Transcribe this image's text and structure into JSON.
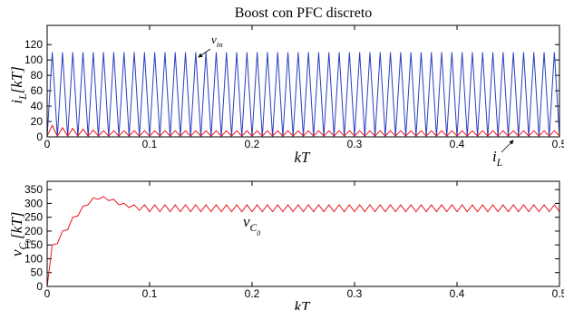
{
  "chart_data": [
    {
      "type": "line",
      "title": "Boost con PFC discreto",
      "ylabel": [
        [
          "i",
          0
        ],
        [
          "L",
          1
        ],
        [
          "[kT]",
          0
        ]
      ],
      "xlabel": [
        [
          "kT",
          0
        ]
      ],
      "annotations": [
        {
          "text": [
            [
              "v",
              0
            ],
            [
              "in",
              1
            ]
          ]
        },
        {
          "text": [
            [
              "i",
              0
            ],
            [
              "L",
              1
            ]
          ]
        }
      ],
      "xlim": [
        0,
        0.5
      ],
      "xticks": [
        0,
        0.1,
        0.2,
        0.3,
        0.4,
        0.5
      ],
      "ylim": [
        0,
        145
      ],
      "yticks": [
        0,
        20,
        40,
        60,
        80,
        100,
        120
      ],
      "x": [
        0,
        0.005,
        0.01,
        0.015,
        0.02,
        0.025,
        0.03,
        0.035,
        0.04,
        0.045,
        0.05,
        0.055,
        0.06,
        0.065,
        0.07,
        0.075,
        0.08,
        0.085,
        0.09,
        0.095,
        0.1,
        0.105,
        0.11,
        0.115,
        0.12,
        0.125,
        0.13,
        0.135,
        0.14,
        0.145,
        0.15,
        0.155,
        0.16,
        0.165,
        0.17,
        0.175,
        0.18,
        0.185,
        0.19,
        0.195,
        0.2,
        0.205,
        0.21,
        0.215,
        0.22,
        0.225,
        0.23,
        0.235,
        0.24,
        0.245,
        0.25,
        0.255,
        0.26,
        0.265,
        0.27,
        0.275,
        0.28,
        0.285,
        0.29,
        0.295,
        0.3,
        0.305,
        0.31,
        0.315,
        0.32,
        0.325,
        0.33,
        0.335,
        0.34,
        0.345,
        0.35,
        0.355,
        0.36,
        0.365,
        0.37,
        0.375,
        0.38,
        0.385,
        0.39,
        0.395,
        0.4,
        0.405,
        0.41,
        0.415,
        0.42,
        0.425,
        0.43,
        0.435,
        0.44,
        0.445,
        0.45,
        0.455,
        0.46,
        0.465,
        0.47,
        0.475,
        0.48,
        0.485,
        0.49,
        0.495,
        0.5
      ],
      "series": [
        {
          "color": "#2b3fc0",
          "values": [
            0,
            110,
            0,
            110,
            0,
            110,
            0,
            110,
            0,
            110,
            0,
            110,
            0,
            110,
            0,
            110,
            0,
            110,
            0,
            110,
            0,
            110,
            0,
            110,
            0,
            110,
            0,
            110,
            0,
            110,
            0,
            110,
            0,
            110,
            0,
            110,
            0,
            110,
            0,
            110,
            0,
            110,
            0,
            110,
            0,
            110,
            0,
            110,
            0,
            110,
            0,
            110,
            0,
            110,
            0,
            110,
            0,
            110,
            0,
            110,
            0,
            110,
            0,
            110,
            0,
            110,
            0,
            110,
            0,
            110,
            0,
            110,
            0,
            110,
            0,
            110,
            0,
            110,
            0,
            110,
            0,
            110,
            0,
            110,
            0,
            110,
            0,
            110,
            0,
            110,
            0,
            110,
            0,
            110,
            0,
            110,
            0,
            110,
            0,
            110,
            0
          ]
        },
        {
          "color": "#e8141c",
          "values": [
            1,
            15,
            1,
            12,
            1,
            11,
            1,
            10,
            1,
            9,
            1,
            8,
            1,
            8,
            1,
            8,
            1,
            8,
            1,
            8,
            1,
            8,
            1,
            8,
            1,
            8,
            1,
            8,
            1,
            8,
            1,
            8,
            1,
            8,
            1,
            8,
            1,
            8,
            1,
            8,
            1,
            8,
            1,
            8,
            1,
            8,
            1,
            8,
            1,
            8,
            1,
            8,
            1,
            8,
            1,
            8,
            1,
            8,
            1,
            8,
            1,
            8,
            1,
            8,
            1,
            8,
            1,
            8,
            1,
            8,
            1,
            8,
            1,
            8,
            1,
            8,
            1,
            8,
            1,
            8,
            1,
            8,
            1,
            8,
            1,
            8,
            1,
            8,
            1,
            8,
            1,
            8,
            1,
            8,
            1,
            8,
            1,
            8,
            1,
            8,
            1
          ]
        }
      ]
    },
    {
      "type": "line",
      "ylabel": [
        [
          "v",
          0
        ],
        [
          "C",
          1
        ],
        [
          "0",
          2
        ],
        [
          "[kT]",
          0
        ]
      ],
      "xlabel": [
        [
          "kT",
          0
        ]
      ],
      "annotations": [
        {
          "text": [
            [
              "v",
              0
            ],
            [
              "C",
              1
            ],
            [
              "0",
              2
            ]
          ]
        }
      ],
      "xlim": [
        0,
        0.5
      ],
      "xticks": [
        0,
        0.1,
        0.2,
        0.3,
        0.4,
        0.5
      ],
      "ylim": [
        0,
        380
      ],
      "yticks": [
        0,
        50,
        100,
        150,
        200,
        250,
        300,
        350
      ],
      "x": [
        0,
        0.005,
        0.01,
        0.015,
        0.02,
        0.025,
        0.03,
        0.035,
        0.04,
        0.045,
        0.05,
        0.055,
        0.06,
        0.065,
        0.07,
        0.075,
        0.08,
        0.085,
        0.09,
        0.095,
        0.1,
        0.105,
        0.11,
        0.115,
        0.12,
        0.125,
        0.13,
        0.135,
        0.14,
        0.145,
        0.15,
        0.155,
        0.16,
        0.165,
        0.17,
        0.175,
        0.18,
        0.185,
        0.19,
        0.195,
        0.2,
        0.205,
        0.21,
        0.215,
        0.22,
        0.225,
        0.23,
        0.235,
        0.24,
        0.245,
        0.25,
        0.255,
        0.26,
        0.265,
        0.27,
        0.275,
        0.28,
        0.285,
        0.29,
        0.295,
        0.3,
        0.305,
        0.31,
        0.315,
        0.32,
        0.325,
        0.33,
        0.335,
        0.34,
        0.345,
        0.35,
        0.355,
        0.36,
        0.365,
        0.37,
        0.375,
        0.38,
        0.385,
        0.39,
        0.395,
        0.4,
        0.405,
        0.41,
        0.415,
        0.42,
        0.425,
        0.43,
        0.435,
        0.44,
        0.445,
        0.45,
        0.455,
        0.46,
        0.465,
        0.47,
        0.475,
        0.48,
        0.485,
        0.49,
        0.495,
        0.5
      ],
      "series": [
        {
          "color": "#e8141c",
          "values": [
            0,
            150,
            155,
            200,
            205,
            250,
            255,
            290,
            295,
            320,
            315,
            325,
            310,
            315,
            295,
            300,
            285,
            295,
            275,
            295,
            270,
            295,
            270,
            295,
            270,
            295,
            270,
            295,
            270,
            295,
            270,
            295,
            270,
            295,
            270,
            295,
            270,
            295,
            270,
            295,
            270,
            295,
            270,
            295,
            270,
            295,
            270,
            295,
            270,
            295,
            270,
            295,
            270,
            295,
            270,
            295,
            270,
            295,
            270,
            295,
            270,
            295,
            270,
            295,
            270,
            295,
            270,
            295,
            270,
            295,
            270,
            295,
            270,
            295,
            270,
            295,
            270,
            295,
            270,
            295,
            270,
            295,
            270,
            295,
            270,
            295,
            270,
            295,
            270,
            295,
            270,
            295,
            270,
            295,
            270,
            295,
            270,
            295,
            270,
            295,
            270
          ]
        }
      ]
    }
  ]
}
